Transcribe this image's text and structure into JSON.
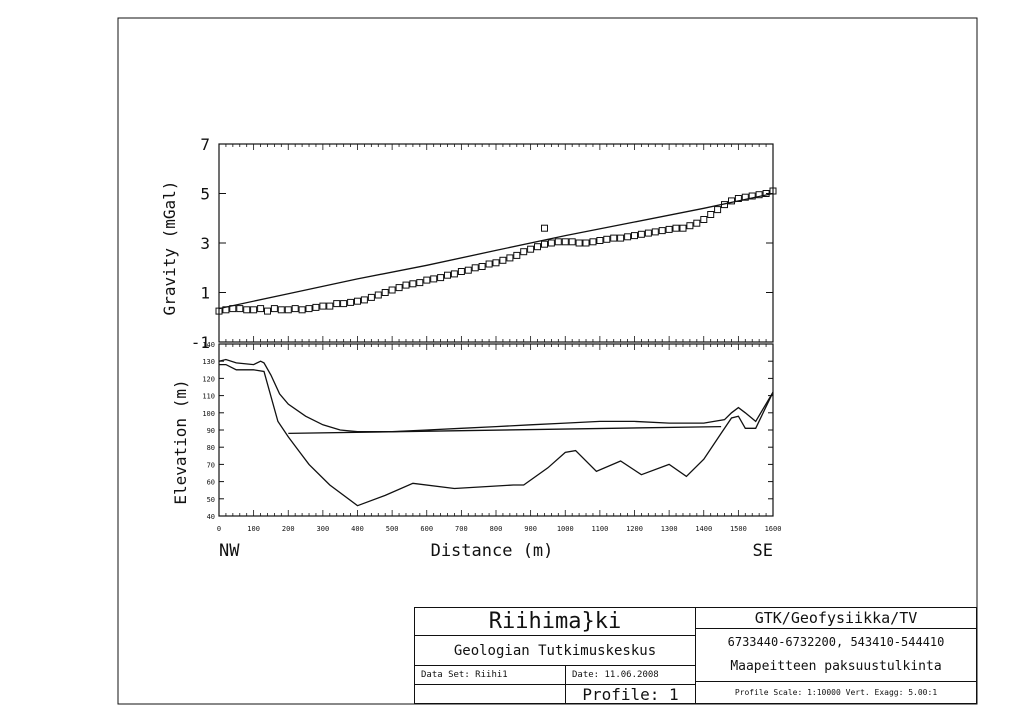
{
  "chart_data": [
    {
      "type": "line",
      "ylabel": "Gravity (mGal)",
      "xlim": [
        0,
        1600
      ],
      "ylim": [
        -1,
        7
      ],
      "yticks": [
        "7",
        "5",
        "3",
        "1",
        "-1"
      ],
      "grid": false,
      "series": [
        {
          "style": "line",
          "x": [
            0,
            200,
            400,
            600,
            800,
            1000,
            1200,
            1400,
            1600
          ],
          "y": [
            0.35,
            0.95,
            1.55,
            2.1,
            2.7,
            3.3,
            3.85,
            4.4,
            5.0
          ]
        },
        {
          "style": "square-markers",
          "x": [
            0,
            20,
            40,
            60,
            80,
            100,
            120,
            140,
            160,
            180,
            200,
            220,
            240,
            260,
            280,
            300,
            320,
            340,
            360,
            380,
            400,
            420,
            440,
            460,
            480,
            500,
            520,
            540,
            560,
            580,
            600,
            620,
            640,
            660,
            680,
            700,
            720,
            740,
            760,
            780,
            800,
            820,
            840,
            860,
            880,
            900,
            920,
            940,
            960,
            980,
            1000,
            1020,
            1040,
            1060,
            1080,
            1100,
            1120,
            1140,
            1160,
            1180,
            1200,
            1220,
            1240,
            1260,
            1280,
            1300,
            1320,
            1340,
            1360,
            1380,
            1400,
            1420,
            1440,
            1460,
            1480,
            1500,
            1520,
            1540,
            1560,
            1580,
            1600
          ],
          "y": [
            0.25,
            0.3,
            0.35,
            0.35,
            0.3,
            0.3,
            0.35,
            0.25,
            0.35,
            0.3,
            0.3,
            0.35,
            0.3,
            0.35,
            0.4,
            0.45,
            0.45,
            0.55,
            0.55,
            0.6,
            0.65,
            0.7,
            0.8,
            0.9,
            1.0,
            1.1,
            1.2,
            1.3,
            1.35,
            1.4,
            1.5,
            1.55,
            1.6,
            1.7,
            1.75,
            1.85,
            1.9,
            2.0,
            2.05,
            2.15,
            2.2,
            2.3,
            2.4,
            2.5,
            2.65,
            2.75,
            2.85,
            2.95,
            3.0,
            3.05,
            3.05,
            3.05,
            3.0,
            3.0,
            3.05,
            3.1,
            3.15,
            3.2,
            3.2,
            3.25,
            3.3,
            3.35,
            3.4,
            3.45,
            3.5,
            3.55,
            3.6,
            3.6,
            3.7,
            3.8,
            3.95,
            4.15,
            4.35,
            4.55,
            4.7,
            4.8,
            4.85,
            4.9,
            4.95,
            5.0,
            5.1
          ]
        },
        {
          "style": "outlier-marker",
          "x": [
            940
          ],
          "y": [
            3.6
          ]
        }
      ]
    },
    {
      "type": "line",
      "ylabel": "Elevation (m)",
      "xlabel": "Distance (m)",
      "xlim": [
        0,
        1600
      ],
      "ylim": [
        40,
        140
      ],
      "xticks": [
        "0",
        "100",
        "200",
        "300",
        "400",
        "500",
        "600",
        "700",
        "800",
        "900",
        "1000",
        "1100",
        "1200",
        "1300",
        "1400",
        "1500",
        "1600"
      ],
      "yticks": [
        "140",
        "130",
        "120",
        "110",
        "100",
        "90",
        "80",
        "70",
        "60",
        "50",
        "40"
      ],
      "grid": false,
      "series": [
        {
          "style": "line",
          "x": [
            0,
            20,
            50,
            100,
            120,
            130,
            150,
            175,
            200,
            250,
            300,
            350,
            400,
            500,
            600,
            700,
            800,
            900,
            1000,
            1100,
            1200,
            1300,
            1400,
            1430,
            1460,
            1480,
            1500,
            1520,
            1550,
            1600
          ],
          "y": [
            130,
            131,
            129,
            128,
            130,
            129,
            122,
            111,
            105,
            98,
            93,
            90,
            89,
            89,
            90,
            91,
            92,
            93,
            94,
            95,
            95,
            94,
            94,
            95,
            96,
            100,
            103,
            100,
            95,
            112
          ]
        },
        {
          "style": "line",
          "x": [
            0,
            20,
            50,
            100,
            130,
            170,
            200,
            230,
            260,
            320,
            400,
            480,
            560,
            680,
            850,
            880,
            950,
            1000,
            1030,
            1090,
            1160,
            1220,
            1300,
            1350,
            1400,
            1450,
            1480,
            1500,
            1520,
            1550,
            1600
          ],
          "y": [
            128,
            128,
            125,
            125,
            124,
            95,
            86,
            78,
            70,
            58,
            46,
            52,
            59,
            56,
            58,
            58,
            68,
            77,
            78,
            66,
            72,
            64,
            70,
            63,
            73,
            88,
            97,
            98,
            91,
            91,
            112
          ]
        },
        {
          "style": "line",
          "x": [
            200,
            1450
          ],
          "y": [
            88,
            92
          ]
        }
      ]
    }
  ],
  "axis_ends": {
    "left": "NW",
    "right": "SE"
  },
  "title_block": {
    "area_name": "Riihima}ki",
    "organization": "Geologian Tutkimuskeskus",
    "data_set": "Data Set: Riihi1",
    "date": "Date: 11.06.2008",
    "profile": "Profile: 1",
    "department": "GTK/Geofysiikka/TV",
    "coordinates": "6733440-6732200, 543410-544410",
    "description": "Maapeitteen paksuustulkinta",
    "scale": "Profile Scale: 1:10000 Vert. Exagg: 5.00:1"
  }
}
